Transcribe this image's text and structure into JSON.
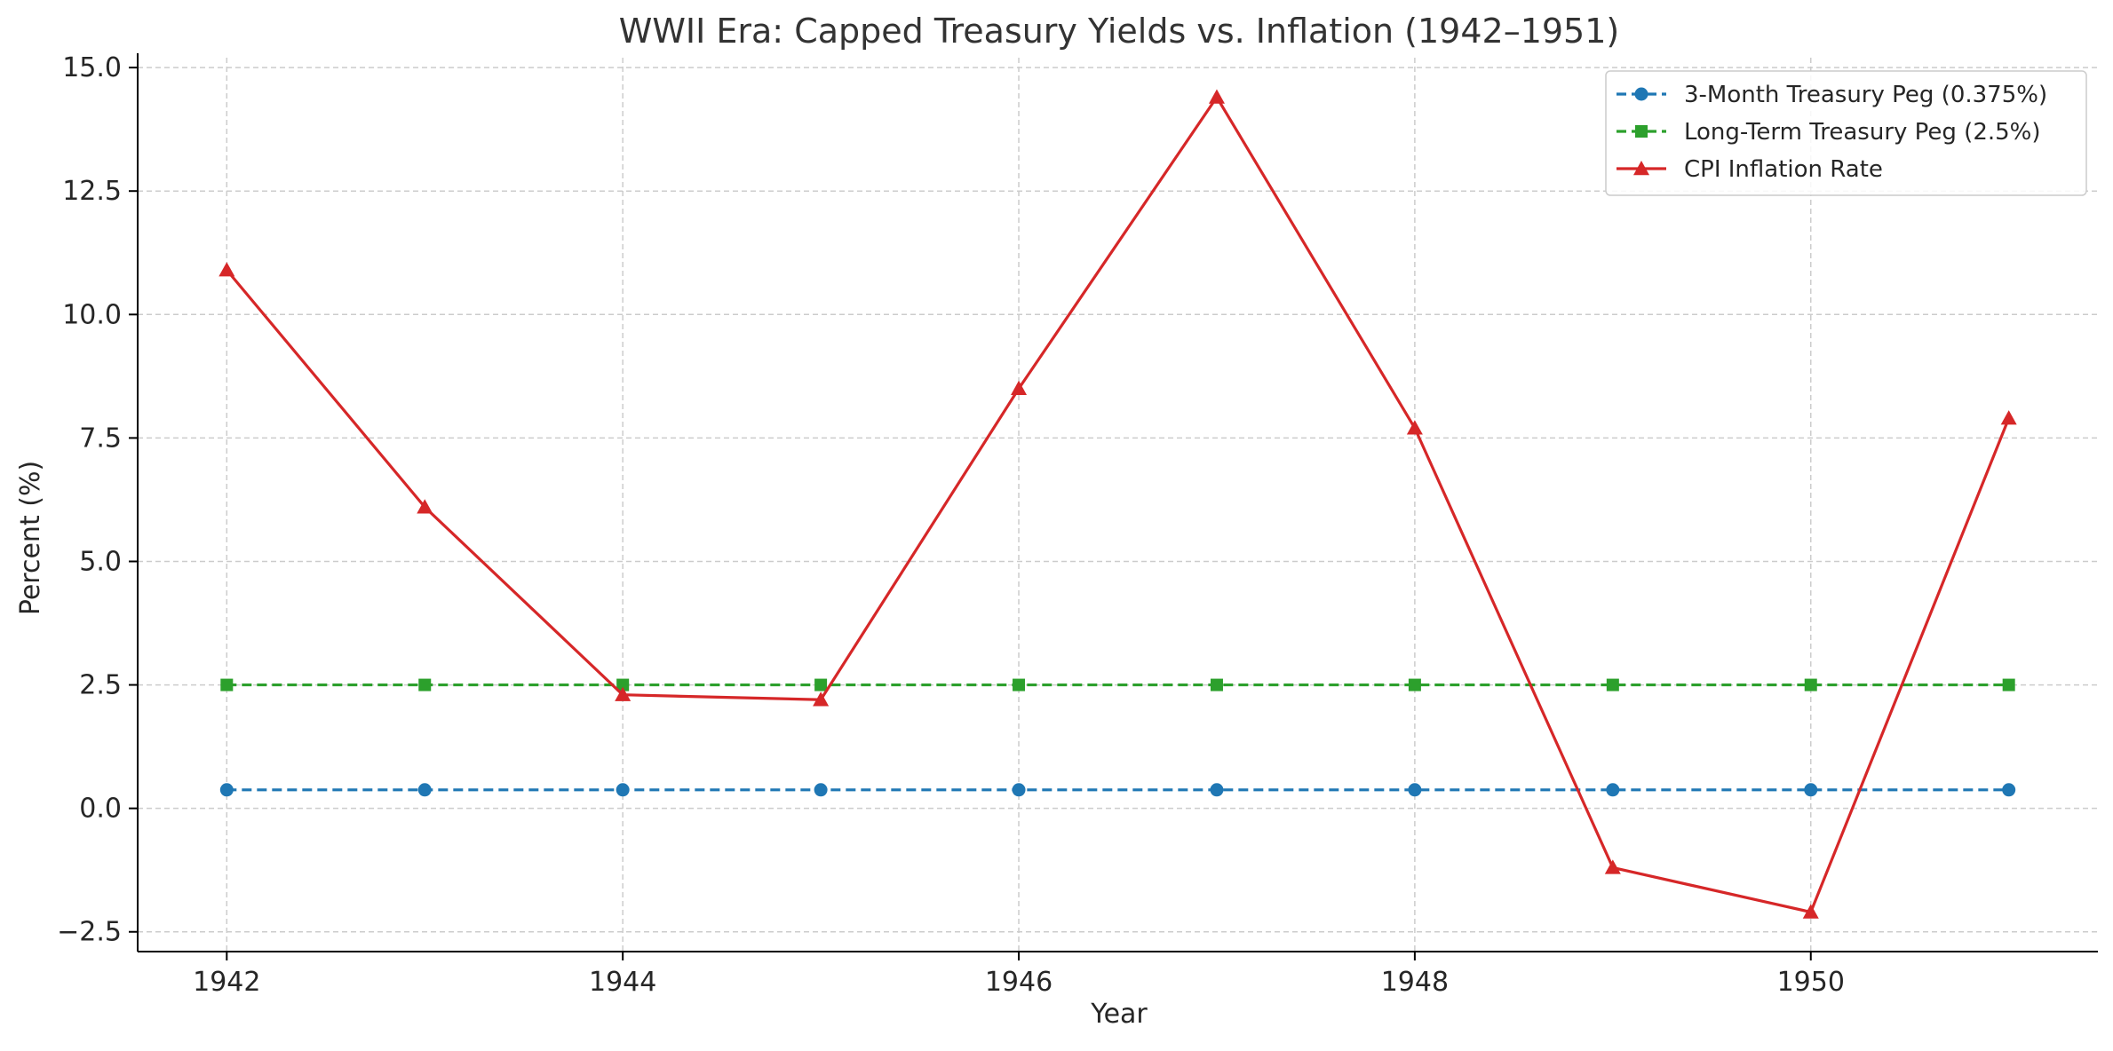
{
  "chart_data": {
    "type": "line",
    "title": "WWII Era: Capped Treasury Yields vs. Inflation (1942–1951)",
    "xlabel": "Year",
    "ylabel": "Percent (%)",
    "x": [
      1942,
      1943,
      1944,
      1945,
      1946,
      1947,
      1948,
      1949,
      1950,
      1951
    ],
    "xlim": [
      1941.55,
      1951.45
    ],
    "ylim": [
      -2.9,
      15.2
    ],
    "x_ticks": [
      1942,
      1944,
      1946,
      1948,
      1950
    ],
    "x_tick_labels": [
      "1942",
      "1944",
      "1946",
      "1948",
      "1950"
    ],
    "y_ticks": [
      -2.5,
      0.0,
      2.5,
      5.0,
      7.5,
      10.0,
      12.5,
      15.0
    ],
    "y_tick_labels": [
      "−2.5",
      "0.0",
      "2.5",
      "5.0",
      "7.5",
      "10.0",
      "12.5",
      "15.0"
    ],
    "grid": true,
    "legend_position": "top-right",
    "series": [
      {
        "name": "3-Month Treasury Peg (0.375%)",
        "values": [
          0.375,
          0.375,
          0.375,
          0.375,
          0.375,
          0.375,
          0.375,
          0.375,
          0.375,
          0.375
        ],
        "color": "#1f77b4",
        "line_style": "dashed",
        "marker": "circle"
      },
      {
        "name": "Long-Term Treasury Peg (2.5%)",
        "values": [
          2.5,
          2.5,
          2.5,
          2.5,
          2.5,
          2.5,
          2.5,
          2.5,
          2.5,
          2.5
        ],
        "color": "#2ca02c",
        "line_style": "dashed",
        "marker": "square"
      },
      {
        "name": "CPI Inflation Rate",
        "values": [
          10.9,
          6.1,
          2.3,
          2.2,
          8.5,
          14.4,
          7.7,
          -1.2,
          -2.1,
          7.9
        ],
        "color": "#d62728",
        "line_style": "solid",
        "marker": "triangle"
      }
    ]
  }
}
